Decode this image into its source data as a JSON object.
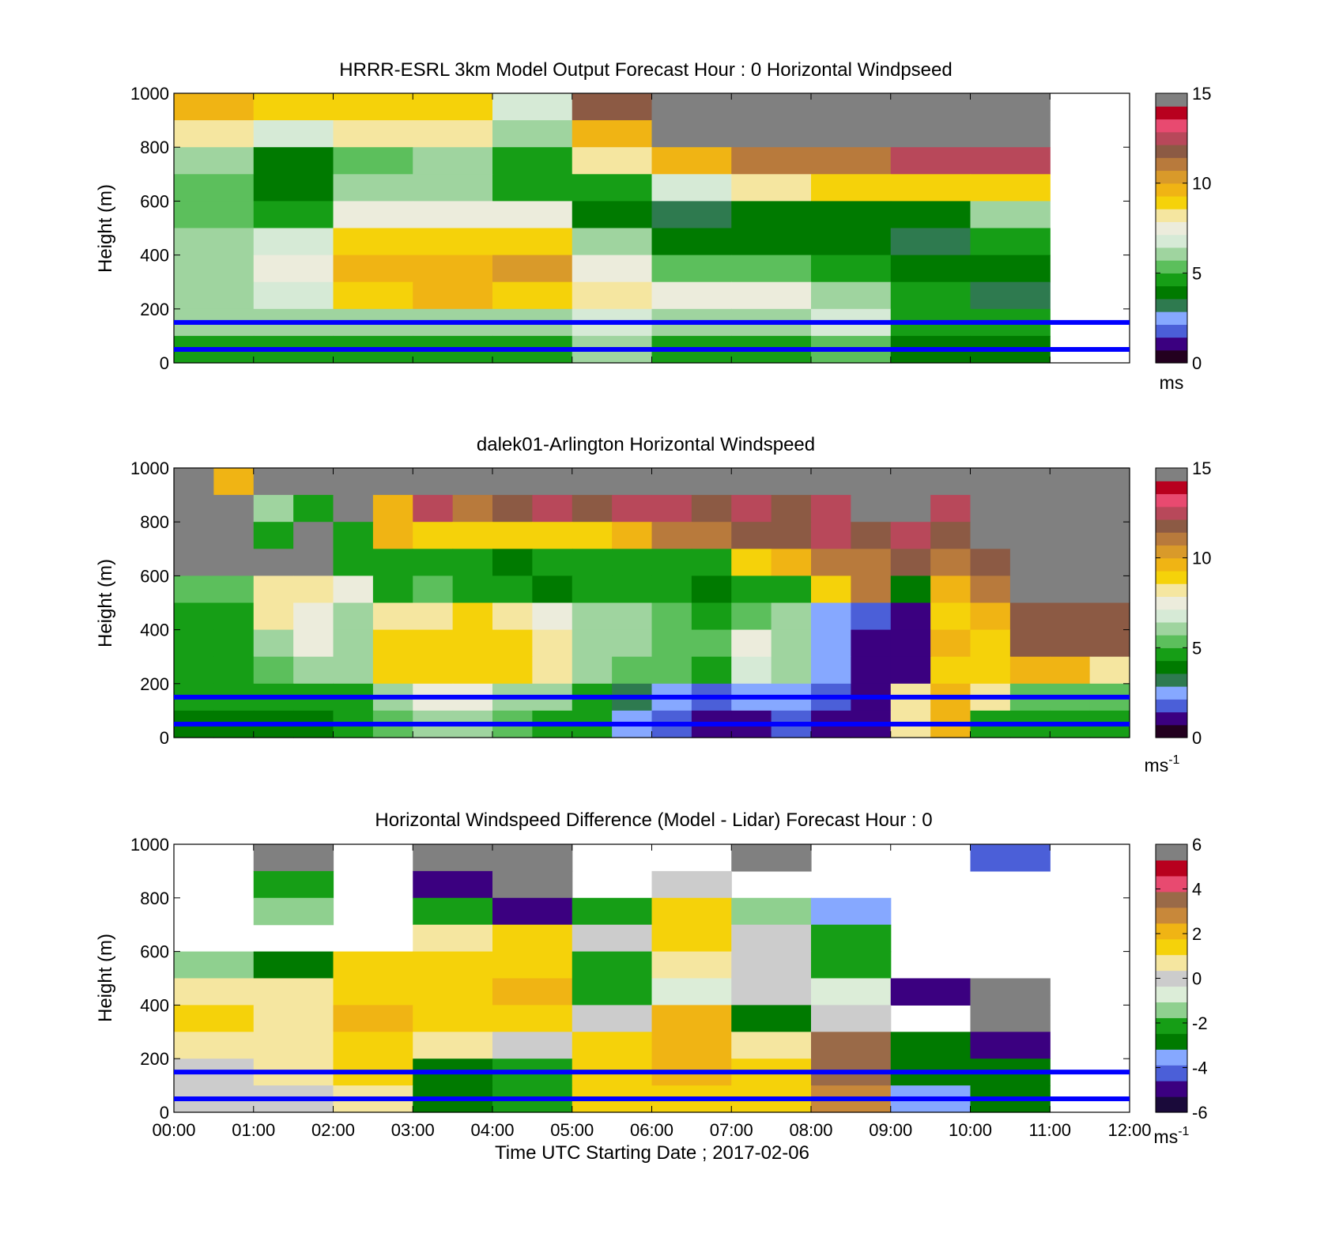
{
  "colors": {
    "windspeed_colormap": [
      "#23001f",
      "#3b0080",
      "#4b5fd8",
      "#86a8ff",
      "#2e7a4f",
      "#007a00",
      "#169e16",
      "#5cbf5c",
      "#9fd49f",
      "#d6ead6",
      "#ececdc",
      "#f5e6a0",
      "#f5d20a",
      "#f0b414",
      "#d99a2a",
      "#b87a3c",
      "#8c5a44",
      "#b8485a",
      "#e84a70",
      "#b8001e",
      "#808080"
    ],
    "difference_colormap": [
      "#1a0a3a",
      "#3b0080",
      "#4b5fd8",
      "#86a8ff",
      "#007a00",
      "#169e16",
      "#8fd08f",
      "#dcedd8",
      "#cccccc",
      "#f5e6a0",
      "#f5d20a",
      "#f0b414",
      "#c8883a",
      "#9a6a48",
      "#e84a70",
      "#b8001e",
      "#808080"
    ],
    "reference_lines": "#0000ff"
  },
  "chart_data": [
    {
      "type": "heatmap",
      "title": "HRRR-ESRL 3km Model Output   Forecast Hour : 0 Horizontal Windpseed",
      "xlabel": "",
      "ylabel": "Height (m)",
      "xlim": [
        0,
        12
      ],
      "ylim": [
        0,
        1000
      ],
      "yticks": [
        "0",
        "200",
        "400",
        "600",
        "800",
        "1000"
      ],
      "colorbar": {
        "min": 0,
        "max": 15,
        "ticks": [
          "0",
          "5",
          "10",
          "15"
        ],
        "unit": "ms"
      },
      "reference_lines_m": [
        50,
        150
      ],
      "x_hours": [
        0,
        1,
        2,
        3,
        4,
        5,
        6,
        7,
        8,
        9,
        10
      ],
      "heights_m": [
        950,
        850,
        750,
        650,
        550,
        450,
        350,
        250,
        150,
        50
      ],
      "values": [
        [
          11,
          10,
          10,
          10,
          7.5,
          13,
          99,
          99,
          99,
          99,
          99
        ],
        [
          9,
          7.5,
          9,
          9,
          6.5,
          11,
          99,
          99,
          99,
          99,
          99
        ],
        [
          6.5,
          4.5,
          6,
          6.5,
          5,
          9,
          11,
          12,
          12,
          14,
          14
        ],
        [
          6,
          4.5,
          6.5,
          6.5,
          5,
          5.5,
          7.5,
          9,
          9.5,
          9.5,
          10
        ],
        [
          6,
          5.5,
          8.5,
          8.5,
          8.5,
          4.5,
          3.5,
          4.5,
          4.5,
          4.5,
          7
        ],
        [
          6.5,
          7.5,
          9.5,
          9.5,
          10,
          6.5,
          4,
          4.5,
          4,
          3.5,
          5
        ],
        [
          7,
          8,
          10.5,
          11,
          11.5,
          8.5,
          6,
          6,
          5,
          4.5,
          4
        ],
        [
          7,
          7.5,
          9.5,
          10.5,
          10,
          9,
          8,
          8.5,
          7,
          5,
          3.5
        ],
        [
          6.5,
          7,
          6.5,
          6.5,
          6.5,
          7.5,
          6.5,
          6.5,
          7.5,
          5,
          5
        ],
        [
          5,
          5,
          5.5,
          5.5,
          5.5,
          6.5,
          5.5,
          5.5,
          6,
          4.5,
          4.5
        ]
      ]
    },
    {
      "type": "heatmap",
      "title": "dalek01-Arlington  Horizontal Windspeed",
      "xlabel": "",
      "ylabel": "Height (m)",
      "xlim": [
        0,
        12
      ],
      "ylim": [
        0,
        1000
      ],
      "yticks": [
        "0",
        "200",
        "400",
        "600",
        "800",
        "1000"
      ],
      "colorbar": {
        "min": 0,
        "max": 15,
        "ticks": [
          "0",
          "5",
          "10",
          "15"
        ],
        "unit": "ms",
        "unit_exponent": "-1"
      },
      "reference_lines_m": [
        50,
        150
      ],
      "x_hours": [
        0,
        0.5,
        1,
        1.5,
        2,
        2.5,
        3,
        3.5,
        4,
        4.5,
        5,
        5.5,
        6,
        6.5,
        7,
        7.5,
        8,
        8.5,
        9,
        9.5,
        10,
        10.5,
        11,
        11.5
      ],
      "heights_m": [
        950,
        850,
        750,
        650,
        550,
        450,
        350,
        250,
        150,
        50
      ],
      "values": [
        [
          99,
          11,
          99,
          99,
          99,
          99,
          99,
          99,
          99,
          99,
          99,
          99,
          99,
          99,
          99,
          99,
          99,
          99,
          99,
          99,
          99,
          99,
          99,
          99
        ],
        [
          99,
          99,
          7,
          5,
          99,
          11,
          14,
          12,
          13,
          14,
          13,
          14,
          14,
          13,
          14,
          13,
          14,
          99,
          99,
          14,
          99,
          99,
          99,
          99
        ],
        [
          99,
          99,
          5,
          99,
          5,
          11,
          10,
          10,
          10,
          10,
          10,
          11,
          12,
          12,
          13,
          13,
          14,
          13,
          14,
          13,
          99,
          99,
          99,
          99
        ],
        [
          99,
          99,
          99,
          99,
          5,
          5.5,
          5,
          5,
          4.5,
          5,
          5,
          5,
          5.5,
          5,
          10,
          11,
          12,
          12,
          13,
          12,
          13,
          99,
          99,
          99
        ],
        [
          6,
          6,
          9,
          9,
          8,
          5,
          6,
          5,
          5,
          4.5,
          5,
          5.5,
          5,
          4.5,
          5,
          5.5,
          10,
          12,
          4,
          11,
          12,
          99,
          99,
          99
        ],
        [
          5,
          5.5,
          9,
          8.5,
          7,
          9,
          9,
          9.5,
          9,
          8.5,
          6.5,
          7,
          6,
          5.5,
          6,
          7,
          3,
          2,
          1,
          10,
          11,
          13,
          13,
          13
        ],
        [
          5,
          5.5,
          7,
          8,
          6.5,
          9.5,
          10,
          10,
          9.5,
          9,
          7,
          6.5,
          6,
          6,
          8,
          6.5,
          3,
          1.5,
          1,
          11,
          10,
          13,
          13,
          13
        ],
        [
          5,
          5,
          6,
          7,
          6.5,
          9.5,
          9.5,
          10,
          9.5,
          9,
          7,
          6,
          6,
          5.5,
          7.5,
          6.5,
          3,
          1,
          1,
          10,
          10,
          11,
          11,
          9
        ],
        [
          5,
          5,
          5.5,
          5.5,
          5.5,
          7,
          8,
          8.5,
          7,
          6.5,
          5.5,
          3.5,
          3,
          2,
          2.5,
          3,
          2,
          1.5,
          9,
          11,
          9,
          6,
          6,
          6
        ],
        [
          4.5,
          4.5,
          4.5,
          4.5,
          5,
          6,
          6.5,
          6.5,
          6,
          5.5,
          5,
          3,
          2,
          1,
          1.5,
          2,
          1.5,
          1.5,
          9,
          11,
          5,
          5.5,
          5,
          5
        ]
      ]
    },
    {
      "type": "heatmap",
      "title": "Horizontal Windspeed Difference (Model - Lidar) Forecast Hour : 0",
      "xlabel": "Time UTC  Starting Date ; 2017-02-06",
      "ylabel": "Height (m)",
      "xlim": [
        0,
        12
      ],
      "ylim": [
        0,
        1000
      ],
      "xticks": [
        "00:00",
        "01:00",
        "02:00",
        "03:00",
        "04:00",
        "05:00",
        "06:00",
        "07:00",
        "08:00",
        "09:00",
        "10:00",
        "11:00",
        "12:00"
      ],
      "yticks": [
        "0",
        "200",
        "400",
        "600",
        "800",
        "1000"
      ],
      "colorbar": {
        "min": -6,
        "max": 6,
        "ticks": [
          "-6",
          "-4",
          "-2",
          "0",
          "2",
          "4",
          "6"
        ],
        "unit": "ms",
        "unit_exponent": "-1"
      },
      "reference_lines_m": [
        50,
        150
      ],
      "x_hours": [
        0,
        1,
        2,
        3,
        4,
        5,
        6,
        7,
        8,
        9,
        10
      ],
      "heights_m": [
        950,
        850,
        750,
        650,
        550,
        450,
        350,
        250,
        150,
        50
      ],
      "values": [
        [
          null,
          9,
          null,
          9,
          9,
          null,
          null,
          9,
          null,
          null,
          -4
        ],
        [
          null,
          -2,
          null,
          -5,
          9,
          null,
          1,
          null,
          null,
          null,
          null
        ],
        [
          null,
          -1,
          null,
          -2,
          -5,
          -2,
          2,
          -1,
          -3,
          null,
          null
        ],
        [
          null,
          null,
          null,
          1.5,
          2,
          1,
          2.5,
          1,
          -2,
          null,
          null
        ],
        [
          -0.5,
          -2.5,
          2,
          2,
          2.5,
          -2,
          1.5,
          0.5,
          -1.5,
          null,
          null
        ],
        [
          1.5,
          1.5,
          2.5,
          2,
          3,
          -1.5,
          0,
          1,
          0,
          -4.5,
          9
        ],
        [
          2,
          1.5,
          3,
          2.5,
          2.5,
          0.5,
          3,
          -2.5,
          0.5,
          null,
          9
        ],
        [
          1.5,
          1.5,
          2,
          1.5,
          1,
          2.5,
          3,
          1.5,
          4.5,
          -2.5,
          -5
        ],
        [
          1,
          1.5,
          2,
          -2.5,
          -1.5,
          2.5,
          3,
          2.5,
          4.5,
          -2.5,
          -2.5
        ],
        [
          1,
          1,
          1.5,
          -2.5,
          -2,
          2,
          2.5,
          2,
          4,
          -3,
          -2.5
        ]
      ]
    }
  ]
}
